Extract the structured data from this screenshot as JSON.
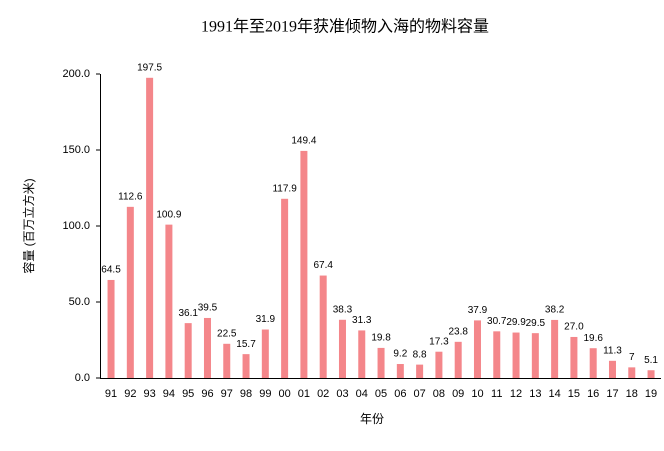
{
  "chart_data": {
    "type": "bar",
    "title": "1991年至2019年获准倾物入海的物料容量",
    "x_label": "年份",
    "y_label": "容量 (百万立方米)",
    "categories": [
      "91",
      "92",
      "93",
      "94",
      "95",
      "96",
      "97",
      "98",
      "99",
      "00",
      "01",
      "02",
      "03",
      "04",
      "05",
      "06",
      "07",
      "08",
      "09",
      "10",
      "11",
      "12",
      "13",
      "14",
      "15",
      "16",
      "17",
      "18",
      "19"
    ],
    "values": [
      64.5,
      112.6,
      197.5,
      100.9,
      36.1,
      39.5,
      22.5,
      15.7,
      31.9,
      117.9,
      149.4,
      67.4,
      38.3,
      31.3,
      19.8,
      9.2,
      8.8,
      17.3,
      23.8,
      37.9,
      30.7,
      29.9,
      29.5,
      38.2,
      27.0,
      19.6,
      11.3,
      7,
      5.1
    ],
    "value_labels": [
      "64.5",
      "112.6",
      "197.5",
      "100.9",
      "36.1",
      "39.5",
      "22.5",
      "15.7",
      "31.9",
      "117.9",
      "149.4",
      "67.4",
      "38.3",
      "31.3",
      "19.8",
      "9.2",
      "8.8",
      "17.3",
      "23.8",
      "37.9",
      "30.7",
      "29.9",
      "29.5",
      "38.2",
      "27.0",
      "19.6",
      "11.3",
      "7",
      "5.1"
    ],
    "color": "#f4868a",
    "ylim": [
      0,
      200
    ],
    "yticks": [
      {
        "value": 0,
        "label": "0.0"
      },
      {
        "value": 50,
        "label": "50.0"
      },
      {
        "value": 100,
        "label": "100.0"
      },
      {
        "value": 150,
        "label": "150.0"
      },
      {
        "value": 200,
        "label": "200.0"
      }
    ],
    "grid": false
  }
}
